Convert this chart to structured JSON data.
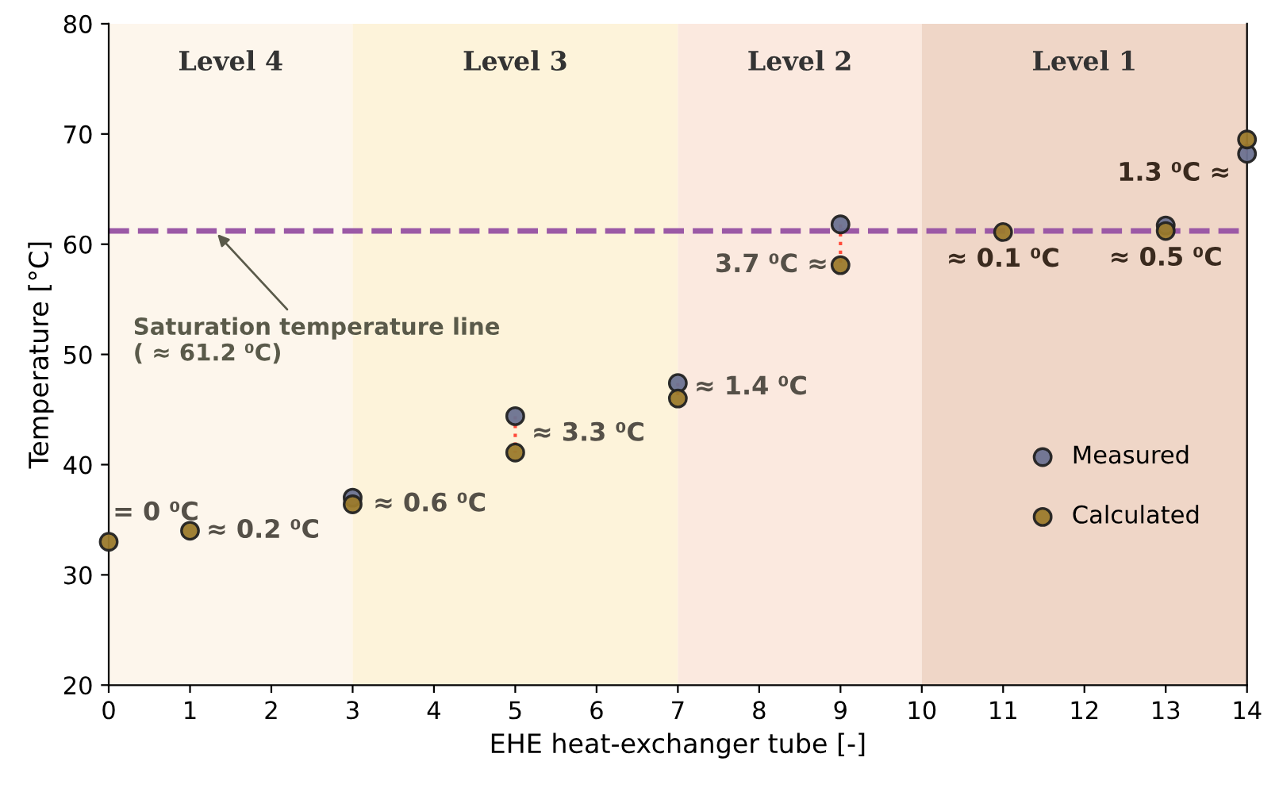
{
  "chart_data": {
    "type": "scatter",
    "xlabel": "EHE heat-exchanger tube [-]",
    "ylabel": "Temperature [°C]",
    "x": [
      0,
      1,
      3,
      5,
      7,
      9,
      11,
      13,
      14
    ],
    "series": [
      {
        "name": "Measured",
        "color": "#6b7291",
        "values": [
          null,
          null,
          37.0,
          44.4,
          47.4,
          61.8,
          null,
          61.7,
          68.2
        ]
      },
      {
        "name": "Calculated",
        "color": "#9b7a2c",
        "values": [
          33.0,
          34.0,
          36.4,
          41.1,
          46.0,
          58.1,
          61.1,
          61.2,
          69.5
        ]
      }
    ],
    "xlim": [
      0,
      14
    ],
    "ylim": [
      20,
      80
    ],
    "xticks": [
      0,
      1,
      2,
      3,
      4,
      5,
      6,
      7,
      8,
      9,
      10,
      11,
      12,
      13,
      14
    ],
    "yticks": [
      20,
      30,
      40,
      50,
      60,
      70,
      80
    ],
    "marker": "circle",
    "grid": false,
    "legend": "right",
    "bands": [
      {
        "axis": "x",
        "from": 0,
        "to": 3,
        "label": "Level 4",
        "color": "#fdf6ec"
      },
      {
        "axis": "x",
        "from": 3,
        "to": 7,
        "label": "Level 3",
        "color": "#fdf3da"
      },
      {
        "axis": "x",
        "from": 7,
        "to": 10,
        "label": "Level 2",
        "color": "#fbe9df"
      },
      {
        "axis": "x",
        "from": 10,
        "to": 14,
        "label": "Level 1",
        "color": "#efd6c7"
      }
    ],
    "ref_lines": [
      {
        "axis": "y",
        "value": 61.2,
        "label": "Saturation temperature line\n( ≈ 61.2 ⁰C)",
        "color": "#9b59a6",
        "line_style": "dashed"
      }
    ],
    "annotations": [
      {
        "text": "= 0 ⁰C",
        "x": 0,
        "y": 33.0
      },
      {
        "text": "≈ 0.2 ⁰C",
        "x": 1,
        "y": 34.0
      },
      {
        "text": "≈ 0.6 ⁰C",
        "x": 3,
        "y": 36.4
      },
      {
        "text": "≈ 3.3 ⁰C",
        "x": 5,
        "y": 41.1
      },
      {
        "text": "≈ 1.4 ⁰C",
        "x": 7,
        "y": 46.0
      },
      {
        "text": "3.7 ⁰C ≈",
        "x": 9,
        "y": 58.1
      },
      {
        "text": "≈ 0.1 ⁰C",
        "x": 11,
        "y": 61.1
      },
      {
        "text": "≈ 0.5 ⁰C",
        "x": 13,
        "y": 61.2
      },
      {
        "text": "1.3 ⁰C ≈",
        "x": 14,
        "y": 68.2
      }
    ]
  }
}
